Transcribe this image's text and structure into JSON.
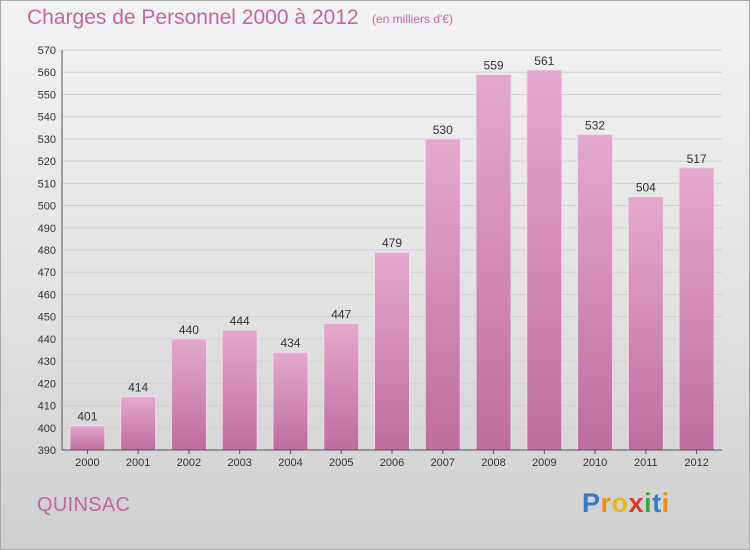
{
  "header": {
    "title": "Charges de Personnel 2000 à 2012",
    "subtitle": "(en milliers d'€)"
  },
  "footer": {
    "commune": "QUINSAC",
    "logo_text": "Proxiti",
    "logo_letters": [
      {
        "ch": "P",
        "color": "#3a78c8"
      },
      {
        "ch": "r",
        "color": "#e8901a"
      },
      {
        "ch": "o",
        "color": "#e8b81a"
      },
      {
        "ch": "x",
        "color": "#d83a2a"
      },
      {
        "ch": "i",
        "color": "#3aa84a"
      },
      {
        "ch": "t",
        "color": "#3a78c8"
      },
      {
        "ch": "i",
        "color": "#e8901a"
      }
    ]
  },
  "colors": {
    "bar_light": "#e4a9cf",
    "bar_dark": "#bd6d9f",
    "text_accent": "#c5669a",
    "grid": "#d0d0d0"
  },
  "chart_data": {
    "type": "bar",
    "title": "Charges de Personnel 2000 à 2012",
    "subtitle": "(en milliers d'€)",
    "categories": [
      "2000",
      "2001",
      "2002",
      "2003",
      "2004",
      "2005",
      "2006",
      "2007",
      "2008",
      "2009",
      "2010",
      "2011",
      "2012"
    ],
    "values": [
      401,
      414,
      440,
      444,
      434,
      447,
      479,
      530,
      559,
      561,
      532,
      504,
      517
    ],
    "ylim": [
      390,
      570
    ],
    "yticks": [
      390,
      400,
      410,
      420,
      430,
      440,
      450,
      460,
      470,
      480,
      490,
      500,
      510,
      520,
      530,
      540,
      550,
      560,
      570
    ],
    "grid": true,
    "data_labels": true
  }
}
